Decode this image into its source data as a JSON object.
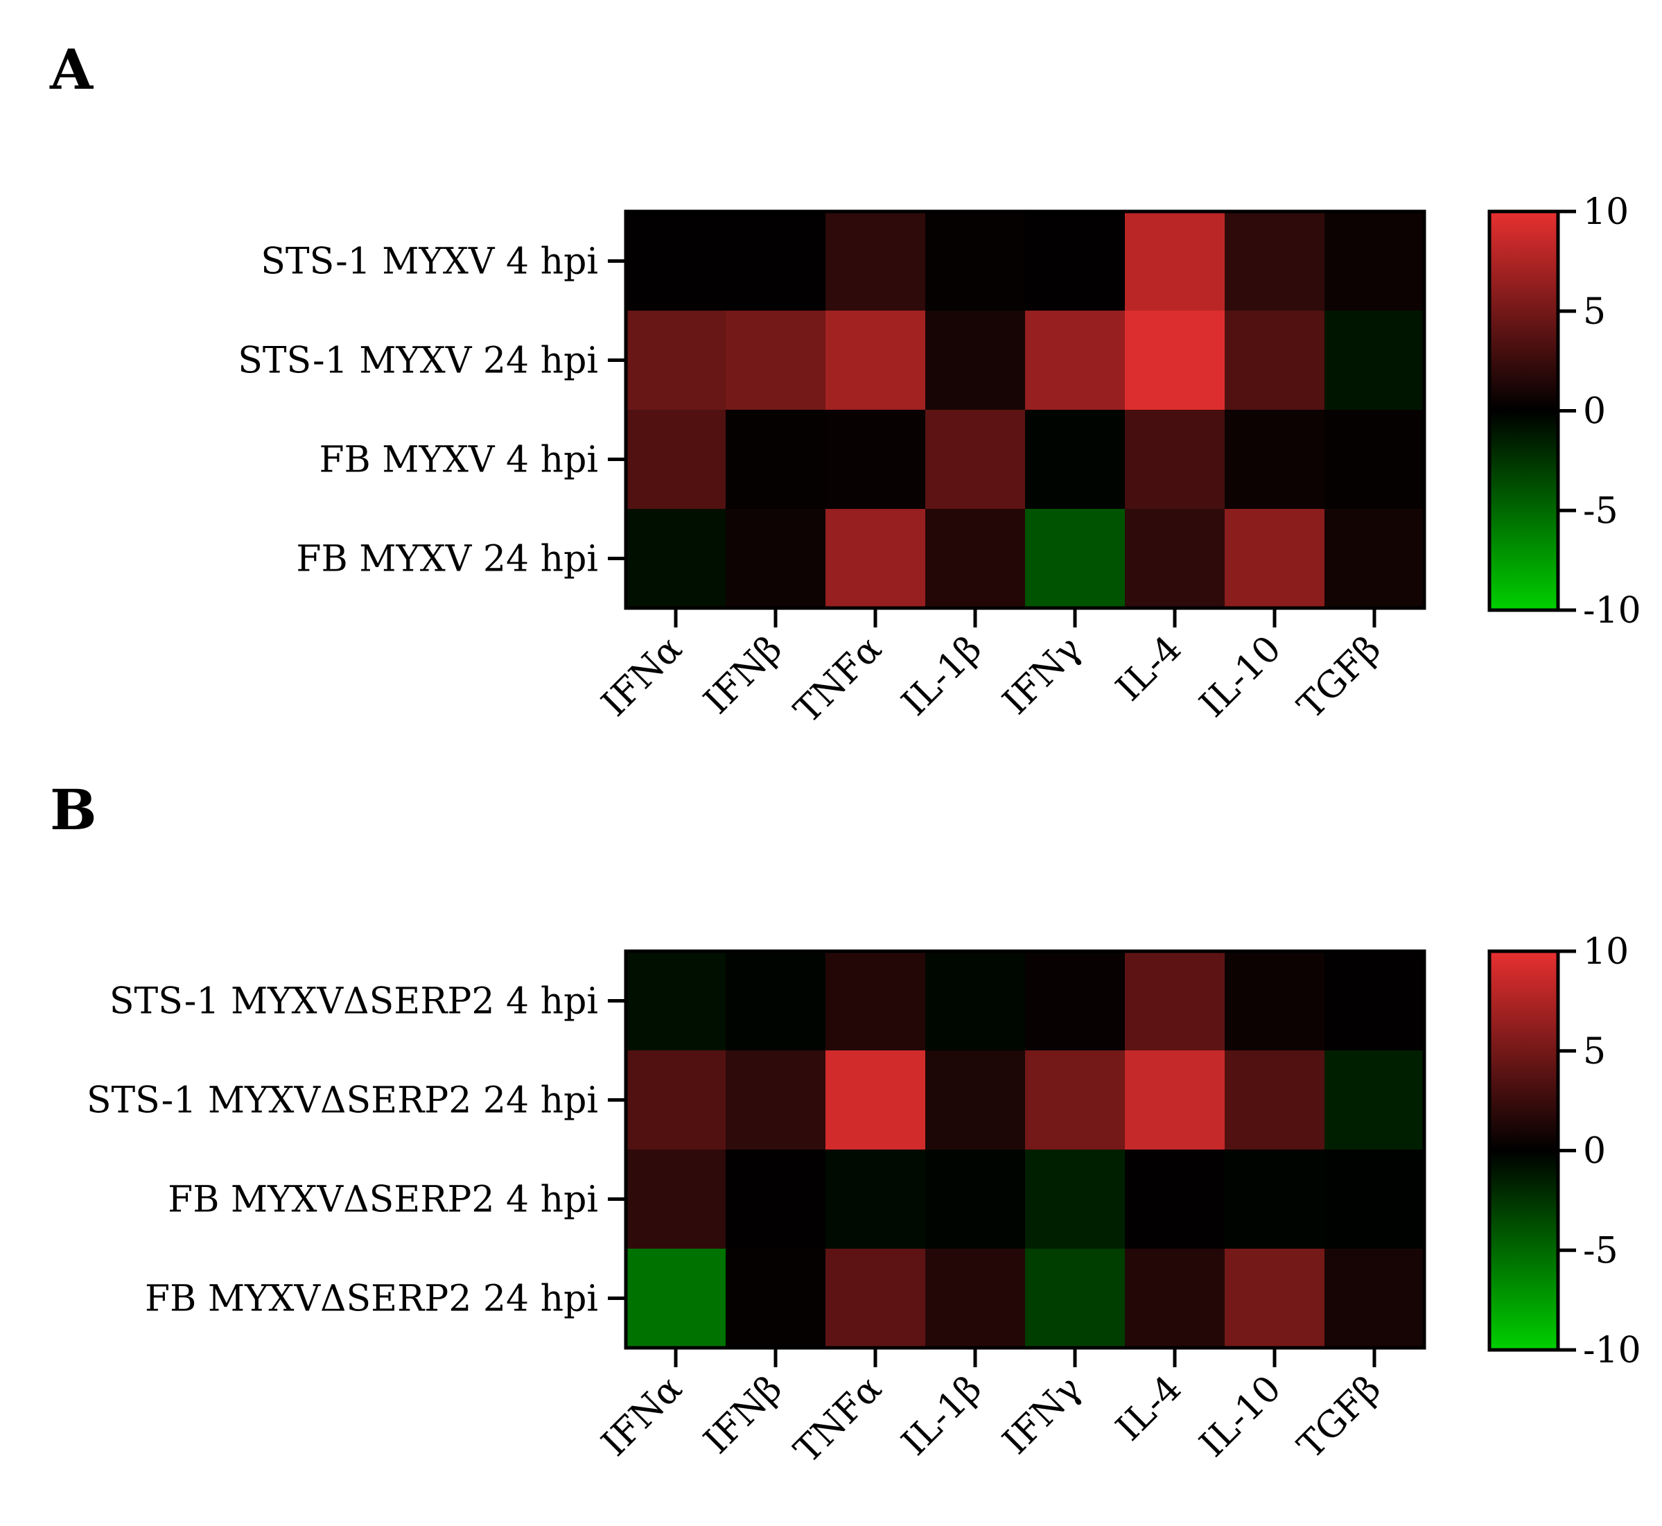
{
  "chart_data": [
    {
      "type": "heatmap",
      "panel_label": "A",
      "categories": [
        "IFNα",
        "IFNβ",
        "TNFα",
        "IL-1β",
        "IFNγ",
        "IL-4",
        "IL-10",
        "TGFβ"
      ],
      "rows": [
        "STS-1 MYXV 4 hpi",
        "STS-1 MYXV 24 hpi",
        "FB MYXV 4 hpi",
        "FB MYXV 24 hpi"
      ],
      "values": [
        [
          0.1,
          0.1,
          2.0,
          0.2,
          0.1,
          8.0,
          2.0,
          0.5
        ],
        [
          4.5,
          5.0,
          7.0,
          1.0,
          6.5,
          9.5,
          3.5,
          -1.0
        ],
        [
          3.5,
          0.2,
          0.3,
          4.0,
          -0.2,
          3.0,
          0.5,
          0.2
        ],
        [
          -0.7,
          0.6,
          6.5,
          1.5,
          -4.0,
          2.0,
          6.0,
          0.8
        ]
      ],
      "colorbar": {
        "min": -10,
        "max": 10,
        "ticks": [
          10,
          5,
          0,
          -5,
          -10
        ]
      },
      "colors": {
        "low": "#00d000",
        "mid": "#000000",
        "high": "#e83030"
      }
    },
    {
      "type": "heatmap",
      "panel_label": "B",
      "categories": [
        "IFNα",
        "IFNβ",
        "TNFα",
        "IL-1β",
        "IFNγ",
        "IL-4",
        "IL-10",
        "TGFβ"
      ],
      "rows": [
        "STS-1 MYXVΔSERP2 4 hpi",
        "STS-1 MYXVΔSERP2 24 hpi",
        "FB MYXVΔSERP2 4 hpi",
        "FB MYXVΔSERP2 24 hpi"
      ],
      "values": [
        [
          -0.7,
          -0.2,
          1.5,
          -0.3,
          0.3,
          4.0,
          0.5,
          0.1
        ],
        [
          3.5,
          2.0,
          9.0,
          1.2,
          5.0,
          8.5,
          3.5,
          -1.5
        ],
        [
          2.0,
          0.1,
          -0.5,
          -0.2,
          -1.5,
          0.1,
          -0.2,
          -0.1
        ],
        [
          -5.5,
          0.2,
          4.0,
          1.5,
          -3.0,
          1.5,
          5.0,
          1.0
        ]
      ],
      "colorbar": {
        "min": -10,
        "max": 10,
        "ticks": [
          10,
          5,
          0,
          -5,
          -10
        ]
      },
      "colors": {
        "low": "#00d000",
        "mid": "#000000",
        "high": "#e83030"
      }
    }
  ]
}
